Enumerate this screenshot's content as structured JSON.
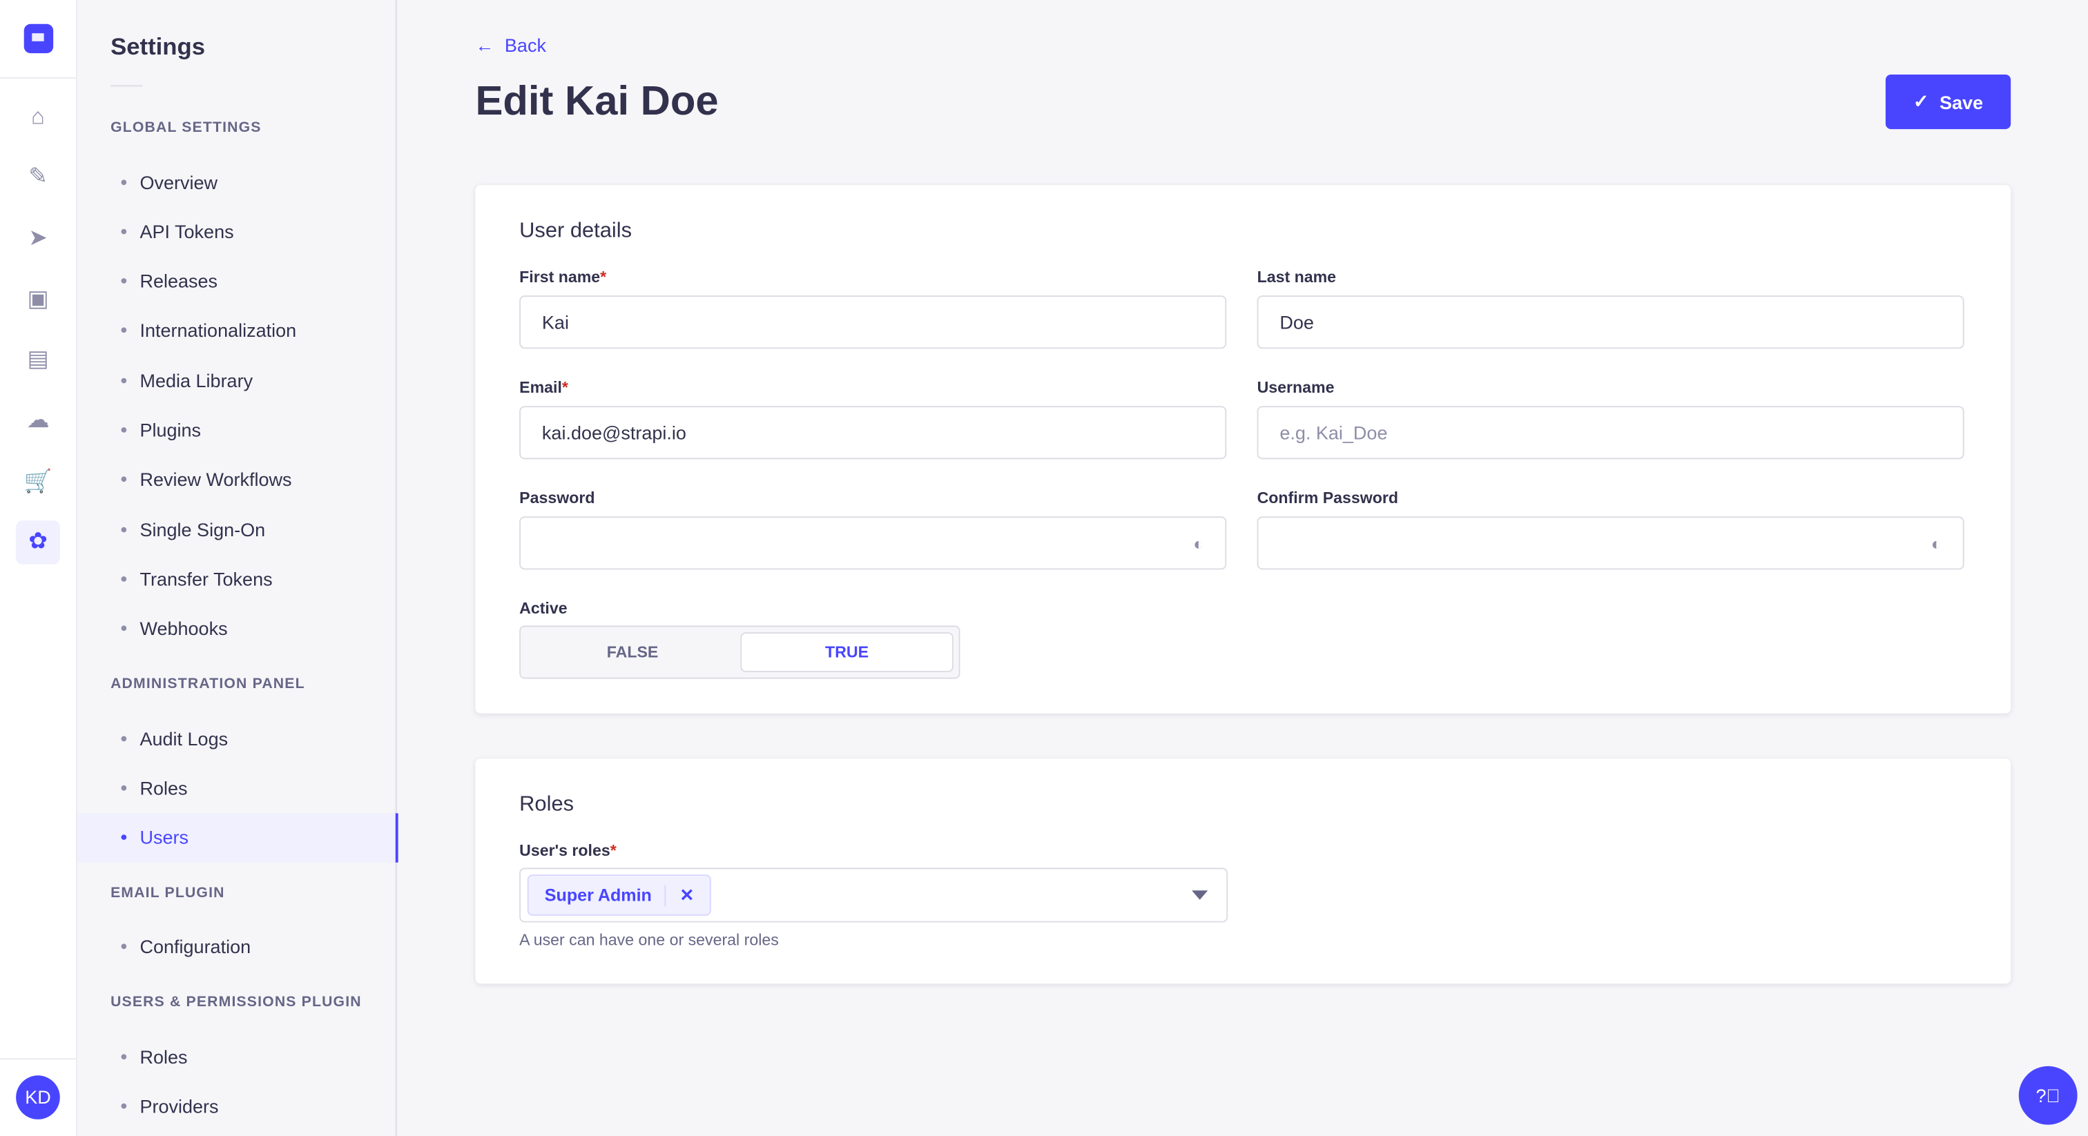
{
  "rail": {
    "items": [
      {
        "icon": "home-icon",
        "glyph": "⌂"
      },
      {
        "icon": "feather-icon",
        "glyph": "✎"
      },
      {
        "icon": "paper-plane-icon",
        "glyph": "➤"
      },
      {
        "icon": "images-icon",
        "glyph": "▣"
      },
      {
        "icon": "layout-icon",
        "glyph": "▤"
      },
      {
        "icon": "cloud-icon",
        "glyph": "☁"
      },
      {
        "icon": "cart-icon",
        "glyph": "🛒"
      },
      {
        "icon": "gear-icon",
        "glyph": "✿",
        "active": true
      }
    ],
    "avatar_initials": "KD"
  },
  "subnav": {
    "title": "Settings",
    "sections": [
      {
        "label": "GLOBAL SETTINGS",
        "items": [
          "Overview",
          "API Tokens",
          "Releases",
          "Internationalization",
          "Media Library",
          "Plugins",
          "Review Workflows",
          "Single Sign-On",
          "Transfer Tokens",
          "Webhooks"
        ]
      },
      {
        "label": "ADMINISTRATION PANEL",
        "items": [
          "Audit Logs",
          "Roles",
          "Users"
        ]
      },
      {
        "label": "EMAIL PLUGIN",
        "items": [
          "Configuration"
        ]
      },
      {
        "label": "USERS & PERMISSIONS PLUGIN",
        "items": [
          "Roles",
          "Providers"
        ]
      }
    ],
    "active_item": "Users"
  },
  "header": {
    "back_label": "Back",
    "title": "Edit Kai Doe",
    "save_label": "Save"
  },
  "user_details": {
    "heading": "User details",
    "first_name": {
      "label": "First name",
      "required": "*",
      "value": "Kai"
    },
    "last_name": {
      "label": "Last name",
      "value": "Doe"
    },
    "email": {
      "label": "Email",
      "required": "*",
      "value": "kai.doe@strapi.io"
    },
    "username": {
      "label": "Username",
      "placeholder": "e.g. Kai_Doe"
    },
    "password": {
      "label": "Password"
    },
    "confirm_password": {
      "label": "Confirm Password"
    },
    "active": {
      "label": "Active",
      "false_label": "FALSE",
      "true_label": "TRUE",
      "value": true
    }
  },
  "roles": {
    "heading": "Roles",
    "label": "User's roles",
    "required": "*",
    "selected": [
      "Super Admin"
    ],
    "hint": "A user can have one or several roles"
  },
  "colors": {
    "primary": "#4945ff",
    "text": "#32324d",
    "muted": "#666687",
    "background": "#f6f6f9",
    "required": "#d02b20"
  }
}
